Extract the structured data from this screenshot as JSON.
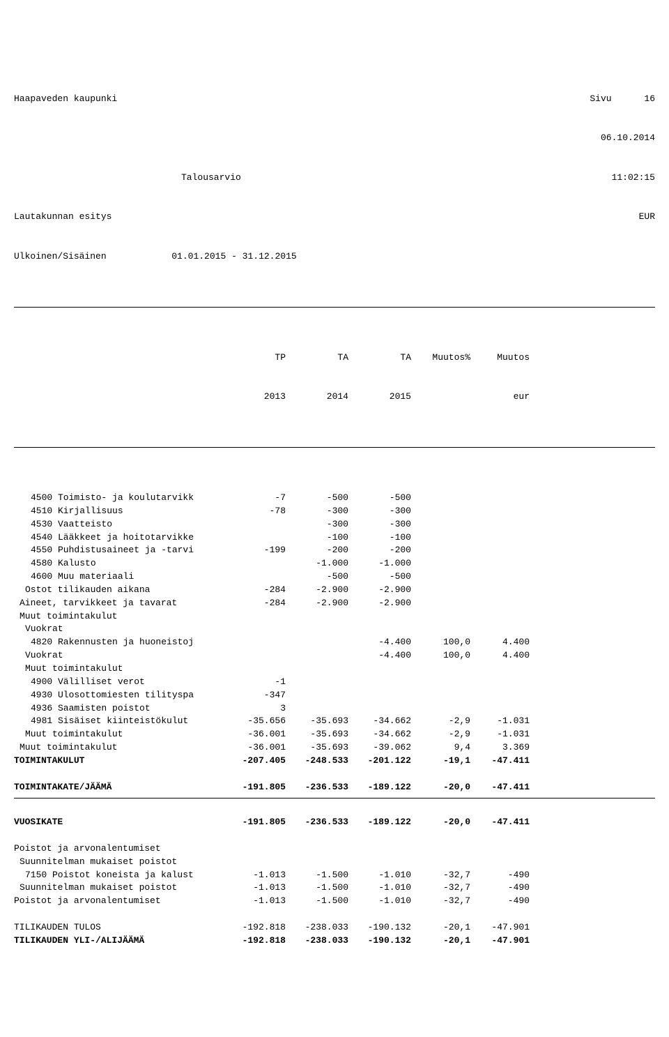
{
  "header": {
    "org": "Haapaveden kaupunki",
    "page_label": "Sivu",
    "page_no": "16",
    "date": "06.10.2014",
    "title": "Talousarvio",
    "time": "11:02:15",
    "sub1": "Lautakunnan esitys",
    "currency": "EUR",
    "sub2": "Ulkoinen/Sisäinen",
    "period": "01.01.2015 - 31.12.2015"
  },
  "cols": {
    "h1a": "TP",
    "h1b": "2013",
    "h2a": "TA",
    "h2b": "2014",
    "h3a": "TA",
    "h3b": "2015",
    "h4a": "Muutos%",
    "h4b": "",
    "h5a": "Muutos",
    "h5b": "eur"
  },
  "rows": [
    {
      "label": "4500 Toimisto- ja koulutarvikk",
      "c": [
        "-7",
        "-500",
        "-500",
        "",
        ""
      ],
      "indent": 3
    },
    {
      "label": "4510 Kirjallisuus",
      "c": [
        "-78",
        "-300",
        "-300",
        "",
        ""
      ],
      "indent": 3
    },
    {
      "label": "4530 Vaatteisto",
      "c": [
        "",
        "-300",
        "-300",
        "",
        ""
      ],
      "indent": 3
    },
    {
      "label": "4540 Lääkkeet ja hoitotarvikke",
      "c": [
        "",
        "-100",
        "-100",
        "",
        ""
      ],
      "indent": 3
    },
    {
      "label": "4550 Puhdistusaineet ja -tarvi",
      "c": [
        "-199",
        "-200",
        "-200",
        "",
        ""
      ],
      "indent": 3
    },
    {
      "label": "4580 Kalusto",
      "c": [
        "",
        "-1.000",
        "-1.000",
        "",
        ""
      ],
      "indent": 3
    },
    {
      "label": "4600 Muu materiaali",
      "c": [
        "",
        "-500",
        "-500",
        "",
        ""
      ],
      "indent": 3
    },
    {
      "label": "Ostot tilikauden aikana",
      "c": [
        "-284",
        "-2.900",
        "-2.900",
        "",
        ""
      ],
      "indent": 2
    },
    {
      "label": "Aineet, tarvikkeet ja tavarat",
      "c": [
        "-284",
        "-2.900",
        "-2.900",
        "",
        ""
      ],
      "indent": 1
    },
    {
      "label": "Muut toimintakulut",
      "c": [
        "",
        "",
        "",
        "",
        ""
      ],
      "indent": 1
    },
    {
      "label": "Vuokrat",
      "c": [
        "",
        "",
        "",
        "",
        ""
      ],
      "indent": 2
    },
    {
      "label": "4820 Rakennusten ja huoneistoj",
      "c": [
        "",
        "",
        "-4.400",
        "100,0",
        "4.400"
      ],
      "indent": 3
    },
    {
      "label": "Vuokrat",
      "c": [
        "",
        "",
        "-4.400",
        "100,0",
        "4.400"
      ],
      "indent": 2
    },
    {
      "label": "Muut toimintakulut",
      "c": [
        "",
        "",
        "",
        "",
        ""
      ],
      "indent": 2
    },
    {
      "label": "4900 Välilliset verot",
      "c": [
        "-1",
        "",
        "",
        "",
        ""
      ],
      "indent": 3
    },
    {
      "label": "4930 Ulosottomiesten tilityspa",
      "c": [
        "-347",
        "",
        "",
        "",
        ""
      ],
      "indent": 3
    },
    {
      "label": "4936 Saamisten poistot",
      "c": [
        "3",
        "",
        "",
        "",
        ""
      ],
      "indent": 3
    },
    {
      "label": "4981 Sisäiset kiinteistökulut",
      "c": [
        "-35.656",
        "-35.693",
        "-34.662",
        "-2,9",
        "-1.031"
      ],
      "indent": 3
    },
    {
      "label": "Muut toimintakulut",
      "c": [
        "-36.001",
        "-35.693",
        "-34.662",
        "-2,9",
        "-1.031"
      ],
      "indent": 2
    },
    {
      "label": "Muut toimintakulut",
      "c": [
        "-36.001",
        "-35.693",
        "-39.062",
        "9,4",
        "3.369"
      ],
      "indent": 1
    },
    {
      "label": "TOIMINTAKULUT",
      "c": [
        "-207.405",
        "-248.533",
        "-201.122",
        "-19,1",
        "-47.411"
      ],
      "bold": true,
      "indent": 0
    },
    {
      "blank": true
    },
    {
      "label": "TOIMINTAKATE/JÄÄMÄ",
      "c": [
        "-191.805",
        "-236.533",
        "-189.122",
        "-20,0",
        "-47.411"
      ],
      "bold": true,
      "indent": 0
    },
    {
      "sep": true
    },
    {
      "blank": true
    },
    {
      "label": "VUOSIKATE",
      "c": [
        "-191.805",
        "-236.533",
        "-189.122",
        "-20,0",
        "-47.411"
      ],
      "bold": true,
      "indent": 0
    },
    {
      "blank": true
    },
    {
      "label": "Poistot ja arvonalentumiset",
      "c": [
        "",
        "",
        "",
        "",
        ""
      ],
      "indent": 0
    },
    {
      "label": "Suunnitelman mukaiset poistot",
      "c": [
        "",
        "",
        "",
        "",
        ""
      ],
      "indent": 1
    },
    {
      "label": "7150 Poistot koneista ja kalust",
      "c": [
        "-1.013",
        "-1.500",
        "-1.010",
        "-32,7",
        "-490"
      ],
      "indent": 2
    },
    {
      "label": "Suunnitelman mukaiset poistot",
      "c": [
        "-1.013",
        "-1.500",
        "-1.010",
        "-32,7",
        "-490"
      ],
      "indent": 1
    },
    {
      "label": "Poistot ja arvonalentumiset",
      "c": [
        "-1.013",
        "-1.500",
        "-1.010",
        "-32,7",
        "-490"
      ],
      "indent": 0
    },
    {
      "blank": true
    },
    {
      "label": "TILIKAUDEN TULOS",
      "c": [
        "-192.818",
        "-238.033",
        "-190.132",
        "-20,1",
        "-47.901"
      ],
      "indent": 0
    },
    {
      "label": "TILIKAUDEN YLI-/ALIJÄÄMÄ",
      "c": [
        "-192.818",
        "-238.033",
        "-190.132",
        "-20,1",
        "-47.901"
      ],
      "bold": true,
      "indent": 0
    }
  ]
}
